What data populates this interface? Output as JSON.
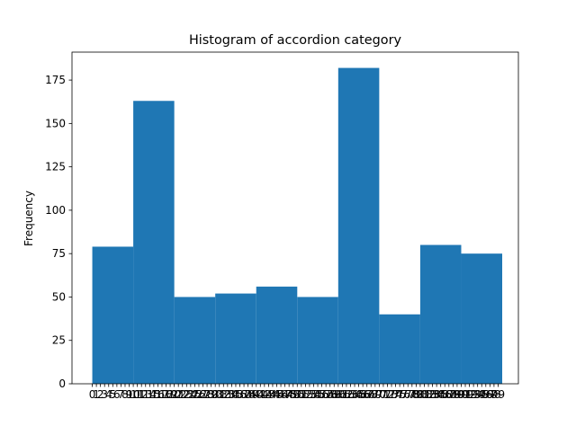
{
  "chart_data": {
    "type": "bar",
    "title": "Histogram of accordion category",
    "xlabel": "",
    "ylabel": "Frequency",
    "ylim": [
      0,
      191.1
    ],
    "yticks": [
      0,
      25,
      50,
      75,
      100,
      125,
      150,
      175
    ],
    "bar_color": "#1f77b4",
    "bins": [
      {
        "start": 0,
        "end": 10,
        "value": 79
      },
      {
        "start": 10,
        "end": 20,
        "value": 163
      },
      {
        "start": 20,
        "end": 30,
        "value": 50
      },
      {
        "start": 30,
        "end": 40,
        "value": 52
      },
      {
        "start": 40,
        "end": 50,
        "value": 56
      },
      {
        "start": 50,
        "end": 60,
        "value": 50
      },
      {
        "start": 60,
        "end": 70,
        "value": 182
      },
      {
        "start": 70,
        "end": 80,
        "value": 40
      },
      {
        "start": 80,
        "end": 90,
        "value": 80
      },
      {
        "start": 90,
        "end": 100,
        "value": 75
      }
    ],
    "xticks": [
      "0",
      "1",
      "2",
      "3",
      "4",
      "5",
      "6",
      "7",
      "8",
      "9",
      "10",
      "11",
      "12",
      "13",
      "14",
      "15",
      "16",
      "17",
      "18",
      "19",
      "20",
      "21",
      "22",
      "23",
      "24",
      "25",
      "26",
      "27",
      "28",
      "29",
      "30",
      "31",
      "32",
      "33",
      "34",
      "35",
      "36",
      "37",
      "38",
      "39",
      "40",
      "41",
      "42",
      "43",
      "44",
      "45",
      "46",
      "47",
      "48",
      "49",
      "50",
      "51",
      "52",
      "53",
      "54",
      "55",
      "56",
      "57",
      "58",
      "59",
      "60",
      "61",
      "62",
      "63",
      "64",
      "65",
      "66",
      "67",
      "68",
      "69",
      "70",
      "71",
      "72",
      "73",
      "74",
      "75",
      "76",
      "77",
      "78",
      "79",
      "80",
      "81",
      "82",
      "83",
      "84",
      "85",
      "86",
      "87",
      "88",
      "89",
      "90",
      "91",
      "92",
      "93",
      "94",
      "95",
      "96",
      "97",
      "98",
      "99"
    ]
  }
}
